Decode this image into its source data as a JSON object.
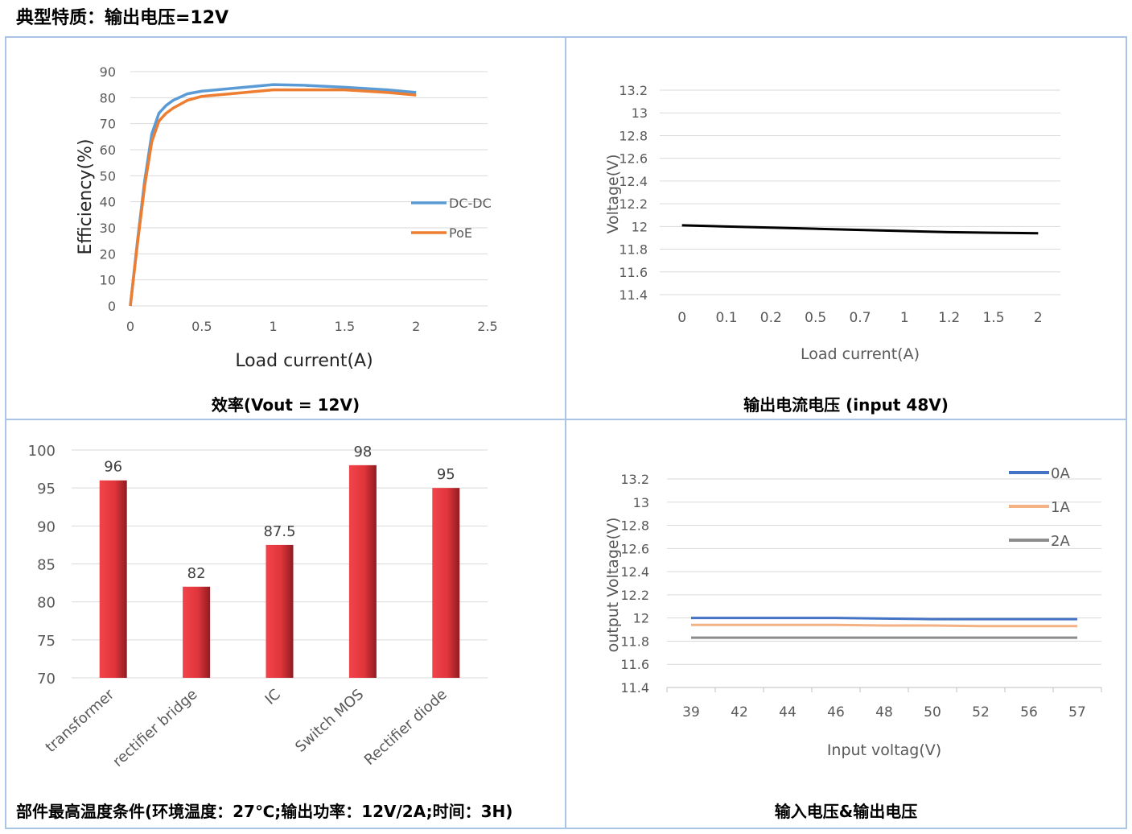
{
  "page": {
    "title": "典型特质：输出电压=12V"
  },
  "panels": [
    {
      "caption": "效率(Vout = 12V)"
    },
    {
      "caption": "输出电流电压 (input 48V)"
    },
    {
      "caption": "部件最高温度条件(环境温度：27℃;输出功率：12V/2A;时间：3H)"
    },
    {
      "caption": "输入电压&输出电压"
    }
  ],
  "chart_data": [
    {
      "id": "efficiency",
      "type": "line",
      "xlabel": "Load current(A)",
      "ylabel": "Efficiency(%)",
      "xlim": [
        0,
        2.5
      ],
      "ylim": [
        0,
        90
      ],
      "x_ticks": [
        "0",
        "0.5",
        "1",
        "1.5",
        "2",
        "2.5"
      ],
      "y_ticks": [
        "0",
        "10",
        "20",
        "30",
        "40",
        "50",
        "60",
        "70",
        "80",
        "90"
      ],
      "legend_position": "right",
      "series": [
        {
          "name": "DC-DC",
          "color": "#5b9bd5",
          "x": [
            0,
            0.05,
            0.1,
            0.15,
            0.2,
            0.25,
            0.3,
            0.4,
            0.5,
            0.7,
            1.0,
            1.2,
            1.5,
            1.8,
            2.0
          ],
          "y": [
            0,
            25,
            48,
            66,
            74,
            77,
            79,
            81.5,
            82.5,
            83.5,
            85,
            84.8,
            84,
            83,
            82
          ]
        },
        {
          "name": "PoE",
          "color": "#ed7d31",
          "x": [
            0,
            0.05,
            0.1,
            0.15,
            0.2,
            0.25,
            0.3,
            0.4,
            0.5,
            0.7,
            1.0,
            1.2,
            1.5,
            1.8,
            2.0
          ],
          "y": [
            0,
            24,
            46,
            63,
            71,
            74,
            76,
            79,
            80.5,
            81.5,
            83,
            83,
            83,
            82,
            81
          ]
        }
      ]
    },
    {
      "id": "load-voltage",
      "type": "line",
      "xlabel": "Load current(A)",
      "ylabel": "Voltage(V)",
      "ylim": [
        11.4,
        13.2
      ],
      "categories": [
        "0",
        "0.1",
        "0.2",
        "0.5",
        "0.7",
        "1",
        "1.2",
        "1.5",
        "2"
      ],
      "y_ticks": [
        "11.4",
        "11.6",
        "11.8",
        "12",
        "12.2",
        "12.4",
        "12.6",
        "12.8",
        "13",
        "13.2"
      ],
      "series": [
        {
          "color": "#000000",
          "values": [
            12.01,
            12.0,
            11.99,
            11.98,
            11.97,
            11.96,
            11.95,
            11.945,
            11.94
          ]
        }
      ]
    },
    {
      "id": "component-temperature",
      "type": "bar",
      "ylim": [
        70,
        100
      ],
      "y_ticks": [
        "70",
        "75",
        "80",
        "85",
        "90",
        "95",
        "100"
      ],
      "categories": [
        "transformer",
        "rectifier bridge",
        "IC",
        "Switch MOS",
        "Rectifier diode"
      ],
      "values": [
        96,
        82,
        87.5,
        98,
        95
      ],
      "data_labels": [
        "96",
        "82",
        "87.5",
        "98",
        "95"
      ],
      "color": "#e0353b"
    },
    {
      "id": "input-output-voltage",
      "type": "line",
      "xlabel": "Input voltag(V)",
      "ylabel": "output Voltage(V)",
      "ylim": [
        11.4,
        13.2
      ],
      "categories": [
        "39",
        "42",
        "44",
        "46",
        "48",
        "50",
        "52",
        "56",
        "57"
      ],
      "y_ticks": [
        "11.4",
        "11.6",
        "11.8",
        "12",
        "12.2",
        "12.4",
        "12.6",
        "12.8",
        "13",
        "13.2"
      ],
      "legend_position": "top-right",
      "series": [
        {
          "name": "0A",
          "color": "#4472c4",
          "values": [
            12.0,
            12.0,
            12.0,
            12.0,
            11.995,
            11.99,
            11.99,
            11.99,
            11.99
          ]
        },
        {
          "name": "1A",
          "color": "#f4b183",
          "values": [
            11.94,
            11.94,
            11.94,
            11.94,
            11.935,
            11.935,
            11.93,
            11.93,
            11.93
          ]
        },
        {
          "name": "2A",
          "color": "#8c8c8c",
          "values": [
            11.83,
            11.83,
            11.83,
            11.83,
            11.83,
            11.83,
            11.83,
            11.83,
            11.83
          ]
        }
      ]
    }
  ]
}
